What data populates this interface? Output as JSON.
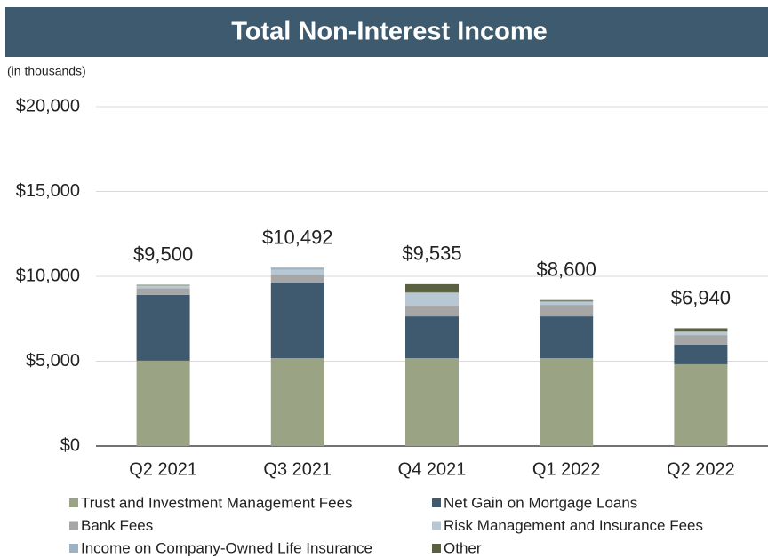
{
  "chart_data": {
    "type": "stacked_bar",
    "title": "Total Non-Interest Income",
    "subtitle": "(in thousands)",
    "categories": [
      "Q2 2021",
      "Q3 2021",
      "Q4 2021",
      "Q1 2022",
      "Q2 2022"
    ],
    "series": [
      {
        "name": "Trust and Investment Management Fees",
        "color": "#9aa383",
        "values": [
          5030,
          5180,
          5180,
          5180,
          4820
        ]
      },
      {
        "name": "Net Gain on Mortgage Loans",
        "color": "#3f5a6e",
        "values": [
          3880,
          4450,
          2460,
          2460,
          1150
        ]
      },
      {
        "name": "Bank Fees",
        "color": "#a6a6a6",
        "values": [
          380,
          470,
          630,
          680,
          570
        ]
      },
      {
        "name": "Risk Management and Insurance Fees",
        "color": "#b7c8d4",
        "values": [
          130,
          290,
          720,
          160,
          160
        ]
      },
      {
        "name": "Income on Company-Owned Life Insurance",
        "color": "#9db3c4",
        "values": [
          60,
          80,
          70,
          70,
          60
        ]
      },
      {
        "name": "Other",
        "color": "#5a6140",
        "values": [
          20,
          22,
          475,
          50,
          180
        ]
      }
    ],
    "totals": [
      9500,
      10492,
      9535,
      8600,
      6940
    ],
    "total_labels": [
      "$9,500",
      "$10,492",
      "$9,535",
      "$8,600",
      "$6,940"
    ],
    "ylim": [
      0,
      20000
    ],
    "yticks": [
      {
        "value": 0,
        "label": "$0"
      },
      {
        "value": 5000,
        "label": "$5,000"
      },
      {
        "value": 10000,
        "label": "$10,000"
      },
      {
        "value": 15000,
        "label": "$15,000"
      },
      {
        "value": 20000,
        "label": "$20,000"
      }
    ],
    "grid": true
  }
}
